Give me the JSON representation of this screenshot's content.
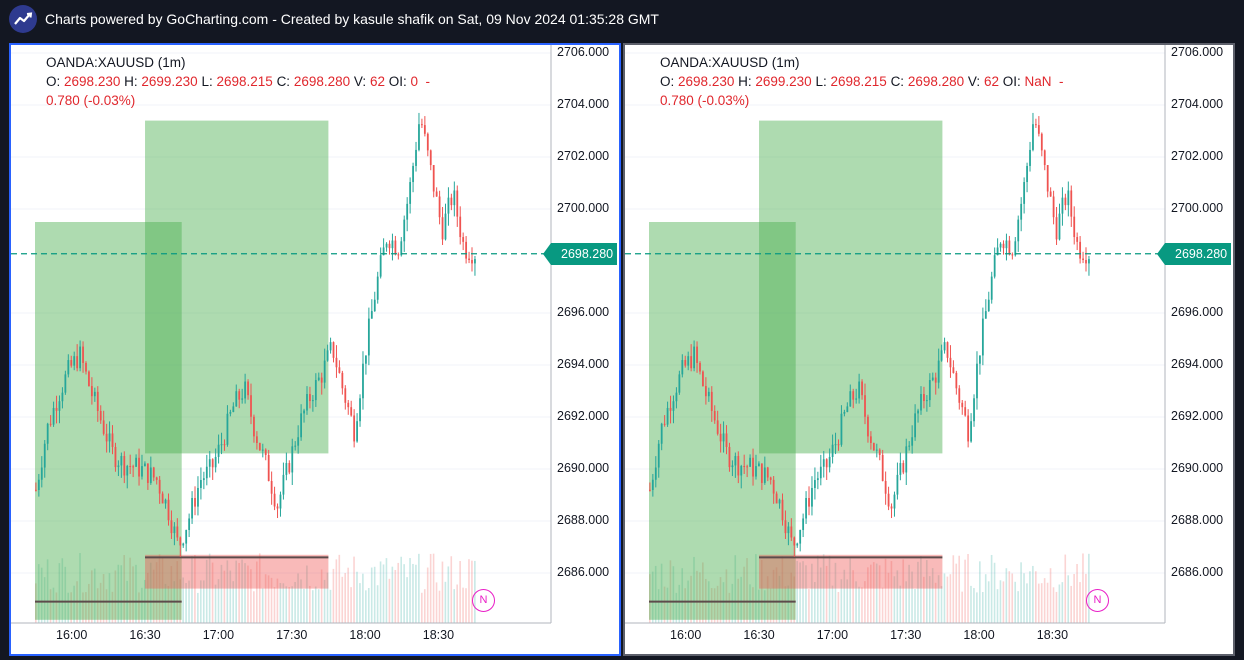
{
  "header": {
    "text": "Charts powered by GoCharting.com - Created by kasule shafik on Sat, 09 Nov 2024 01:35:28 GMT",
    "logo_icon": "trend-up-icon"
  },
  "colors": {
    "up": "#26a69a",
    "down": "#ef5350",
    "zone": "#4caf50",
    "active_border": "#2962ff",
    "last_price": "#089981",
    "badge": "#e91ec7"
  },
  "panels": [
    {
      "symbol": "OANDA:XAUUSD (1m)",
      "o_label": "O:",
      "o": "2698.230",
      "h_label": "H:",
      "h": "2699.230",
      "l_label": "L:",
      "l": "2698.215",
      "c_label": "C:",
      "c": "2698.280",
      "v_label": "V:",
      "v": "62",
      "oi_label": "OI:",
      "oi": "0",
      "change_a": "-",
      "change_b": "0.780  (-0.03%)",
      "last_price": "2698.280",
      "badge": "N"
    },
    {
      "symbol": "OANDA:XAUUSD (1m)",
      "o_label": "O:",
      "o": "2698.230",
      "h_label": "H:",
      "h": "2699.230",
      "l_label": "L:",
      "l": "2698.215",
      "c_label": "C:",
      "c": "2698.280",
      "v_label": "V:",
      "v": "62",
      "oi_label": "OI:",
      "oi": "NaN",
      "change_a": "-",
      "change_b": "0.780  (-0.03%)",
      "last_price": "2698.280",
      "badge": "N"
    }
  ],
  "y_axis": {
    "ticks": [
      "2706.000",
      "2704.000",
      "2702.000",
      "2700.000",
      "2696.000",
      "2694.000",
      "2692.000",
      "2690.000",
      "2688.000",
      "2686.000"
    ],
    "range": [
      2684.2,
      2706.0
    ]
  },
  "x_axis": {
    "ticks": [
      "16:00",
      "16:30",
      "17:00",
      "17:30",
      "18:00",
      "18:30"
    ]
  },
  "chart_data": {
    "type": "candlestick",
    "symbol": "OANDA:XAUUSD",
    "interval": "1m",
    "time_ticks": [
      "16:00",
      "16:30",
      "17:00",
      "17:30",
      "18:00",
      "18:30"
    ],
    "last_price": 2698.28,
    "price_path": [
      2689.2,
      2691.5,
      2692.8,
      2693.8,
      2694.4,
      2693.0,
      2691.8,
      2690.6,
      2690.2,
      2690.1,
      2689.9,
      2689.6,
      2688.5,
      2687.0,
      2688.2,
      2689.6,
      2690.0,
      2691.1,
      2692.4,
      2693.1,
      2691.4,
      2690.1,
      2688.6,
      2690.1,
      2691.7,
      2692.8,
      2693.6,
      2694.7,
      2693.0,
      2691.5,
      2694.5,
      2697.0,
      2699.0,
      2698.5,
      2700.6,
      2703.6,
      2701.4,
      2699.2,
      2700.6,
      2698.5,
      2698.3
    ],
    "zones": [
      {
        "from": "15:45",
        "to": "16:45",
        "top": 2699.5,
        "bottom": 2684.2
      },
      {
        "from": "16:30",
        "to": "17:45",
        "top": 2703.4,
        "bottom": 2690.6
      },
      {
        "from": "16:30",
        "to": "17:45",
        "top": 2686.7,
        "bottom": 2685.4
      }
    ],
    "levels": [
      {
        "price": 2684.9,
        "from": "15:45",
        "to": "16:45"
      },
      {
        "price": 2686.6,
        "from": "16:30",
        "to": "17:45"
      }
    ]
  }
}
